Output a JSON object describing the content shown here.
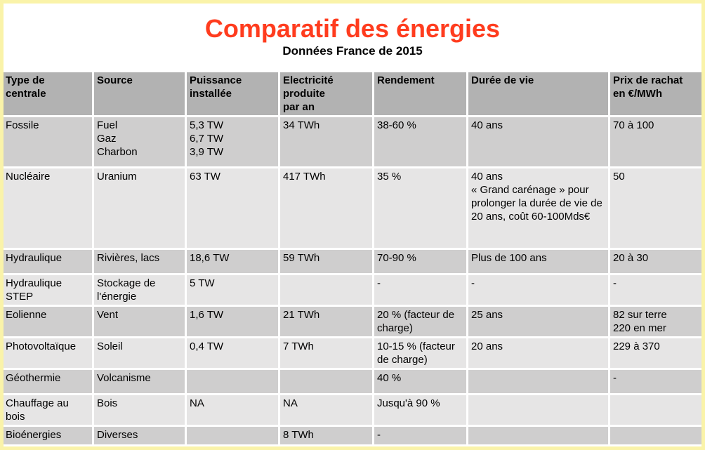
{
  "header": {
    "title": "Comparatif des énergies",
    "subtitle": "Données France de 2015"
  },
  "colors": {
    "accent_title": "#FF3C1E",
    "frame": "#FAF3A9",
    "header_bg": "#B2B2B2",
    "row_dark": "#CFCECE",
    "row_light": "#E6E5E5",
    "grid_gap": "#FFFFFF",
    "text": "#000000"
  },
  "table": {
    "columns": [
      "Type de\ncentrale",
      "Source",
      "Puissance\ninstallée",
      "Electricité\nproduite\npar an",
      "Rendement",
      "Durée de vie",
      "Prix de rachat\nen €/MWh"
    ],
    "rows": [
      {
        "cells": [
          "Fossile",
          "Fuel\nGaz\nCharbon",
          "5,3 TW\n6,7 TW\n3,9 TW",
          "34 TWh",
          "38-60 %",
          "40 ans",
          "70 à 100"
        ]
      },
      {
        "cells": [
          "Nucléaire",
          "Uranium",
          "63 TW",
          "417 TWh",
          "35 %",
          "40 ans\n« Grand carénage » pour prolonger la durée de vie de 20 ans, coût 60-100Mds€",
          "50"
        ]
      },
      {
        "cells": [
          "Hydraulique",
          "Rivières, lacs",
          "18,6 TW",
          "59 TWh",
          "70-90 %",
          "Plus de 100 ans",
          "20 à 30"
        ]
      },
      {
        "cells": [
          "Hydraulique\nSTEP",
          "Stockage de\nl'énergie",
          "5 TW",
          "",
          "-",
          "-",
          "-"
        ]
      },
      {
        "cells": [
          "Eolienne",
          "Vent",
          "1,6 TW",
          "21 TWh",
          "20 % (facteur de charge)",
          "25 ans",
          "82 sur terre\n220 en mer"
        ]
      },
      {
        "cells": [
          "Photovoltaïque",
          "Soleil",
          "0,4 TW",
          "7 TWh",
          "10-15 %  (facteur de charge)",
          "20 ans",
          "229 à 370"
        ]
      },
      {
        "cells": [
          "Géothermie",
          "Volcanisme",
          "",
          "",
          "40 %",
          "",
          "-"
        ]
      },
      {
        "cells": [
          "Chauffage au\nbois",
          "Bois",
          "NA",
          "NA",
          "Jusqu'à 90 %",
          "",
          ""
        ]
      },
      {
        "cells": [
          "Bioénergies",
          "Diverses",
          "",
          "8 TWh",
          "-",
          "",
          ""
        ]
      },
      {
        "cells": [
          "",
          "",
          "",
          "",
          "",
          "",
          ""
        ]
      }
    ]
  }
}
